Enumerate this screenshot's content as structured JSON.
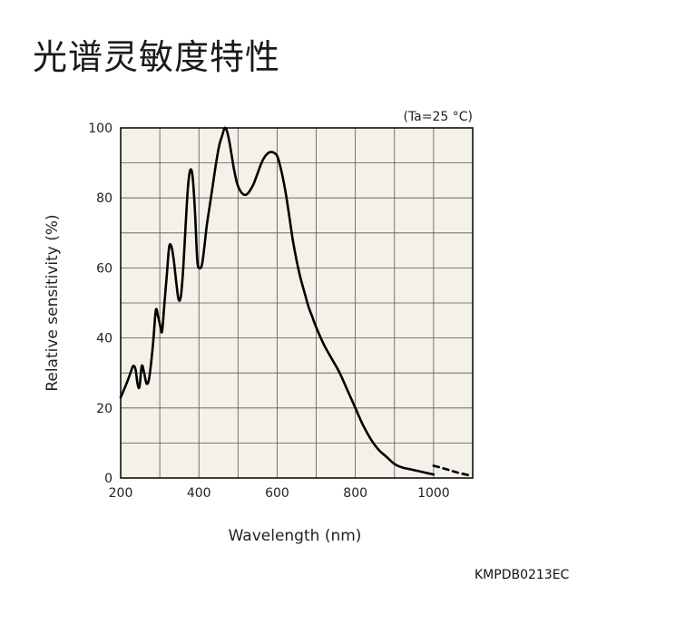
{
  "page": {
    "title": "光谱灵敏度特性",
    "figure_code": "KMPDB0213EC"
  },
  "chart_data": {
    "type": "line",
    "title": "",
    "condition": "(Ta=25 °C)",
    "xlabel": "Wavelength (nm)",
    "ylabel": "Relative sensitivity (%)",
    "xlim": [
      200,
      1100
    ],
    "ylim": [
      0,
      100
    ],
    "x_ticks": [
      "200",
      "400",
      "600",
      "800",
      "1000"
    ],
    "y_ticks": [
      "0",
      "20",
      "40",
      "60",
      "80",
      "100"
    ],
    "grid": true,
    "plot_background": "#f3f1e8",
    "series": [
      {
        "style": "solid",
        "color": "#000000",
        "x": [
          200,
          215,
          225,
          232,
          238,
          243,
          248,
          254,
          260,
          266,
          272,
          278,
          284,
          290,
          296,
          302,
          306,
          312,
          318,
          324,
          330,
          336,
          342,
          348,
          354,
          360,
          366,
          372,
          378,
          384,
          390,
          396,
          402,
          408,
          414,
          420,
          428,
          436,
          444,
          452,
          460,
          466,
          472,
          478,
          484,
          490,
          498,
          506,
          514,
          522,
          530,
          540,
          550,
          560,
          570,
          580,
          590,
          600,
          608,
          616,
          624,
          632,
          640,
          650,
          660,
          670,
          680,
          690,
          700,
          720,
          740,
          760,
          780,
          800,
          820,
          840,
          860,
          880,
          900,
          920,
          940,
          960,
          980,
          1000
        ],
        "y": [
          23,
          27,
          30,
          32,
          31,
          27,
          26,
          32,
          30,
          27,
          28,
          33,
          40,
          48,
          46,
          43,
          42,
          50,
          58,
          66,
          66,
          62,
          56,
          51,
          52,
          60,
          72,
          83,
          88,
          86,
          76,
          62,
          60,
          61,
          66,
          72,
          78,
          84,
          90,
          95,
          98,
          100,
          99,
          96,
          92,
          88,
          84,
          82,
          81,
          81,
          82,
          84,
          87,
          90,
          92,
          93,
          93,
          92,
          89,
          85,
          80,
          74,
          68,
          62,
          57,
          53,
          49,
          46,
          43,
          38,
          34,
          30,
          25,
          20,
          15,
          11,
          8,
          6,
          4,
          3,
          2.5,
          2,
          1.5,
          1
        ]
      },
      {
        "style": "dashed",
        "color": "#000000",
        "x": [
          1000,
          1030,
          1060,
          1090
        ],
        "y": [
          3.5,
          2.6,
          1.6,
          0.8
        ]
      }
    ]
  }
}
